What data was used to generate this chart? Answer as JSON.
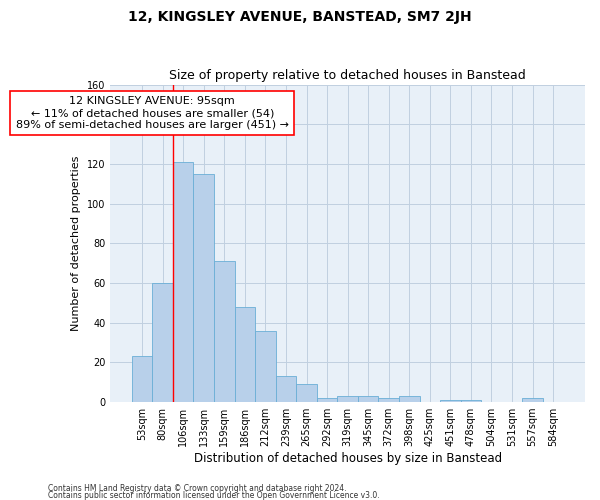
{
  "title": "12, KINGSLEY AVENUE, BANSTEAD, SM7 2JH",
  "subtitle": "Size of property relative to detached houses in Banstead",
  "xlabel": "Distribution of detached houses by size in Banstead",
  "ylabel": "Number of detached properties",
  "bar_labels": [
    "53sqm",
    "80sqm",
    "106sqm",
    "133sqm",
    "159sqm",
    "186sqm",
    "212sqm",
    "239sqm",
    "265sqm",
    "292sqm",
    "319sqm",
    "345sqm",
    "372sqm",
    "398sqm",
    "425sqm",
    "451sqm",
    "478sqm",
    "504sqm",
    "531sqm",
    "557sqm",
    "584sqm"
  ],
  "bar_values": [
    23,
    60,
    121,
    115,
    71,
    48,
    36,
    13,
    9,
    2,
    3,
    3,
    2,
    3,
    0,
    1,
    1,
    0,
    0,
    2,
    0
  ],
  "bar_color": "#b8d0ea",
  "bar_edge_color": "#6aaed6",
  "ylim": [
    0,
    160
  ],
  "yticks": [
    0,
    20,
    40,
    60,
    80,
    100,
    120,
    140,
    160
  ],
  "property_label": "12 KINGSLEY AVENUE: 95sqm",
  "annotation_line1": "← 11% of detached houses are smaller (54)",
  "annotation_line2": "89% of semi-detached houses are larger (451) →",
  "vline_x": 2,
  "footer_line1": "Contains HM Land Registry data © Crown copyright and database right 2024.",
  "footer_line2": "Contains public sector information licensed under the Open Government Licence v3.0.",
  "grid_color": "#c0cfe0",
  "background_color": "#e8f0f8",
  "title_fontsize": 10,
  "subtitle_fontsize": 9,
  "annot_fontsize": 8,
  "tick_fontsize": 7,
  "ylabel_fontsize": 8,
  "xlabel_fontsize": 8.5,
  "footer_fontsize": 5.5
}
